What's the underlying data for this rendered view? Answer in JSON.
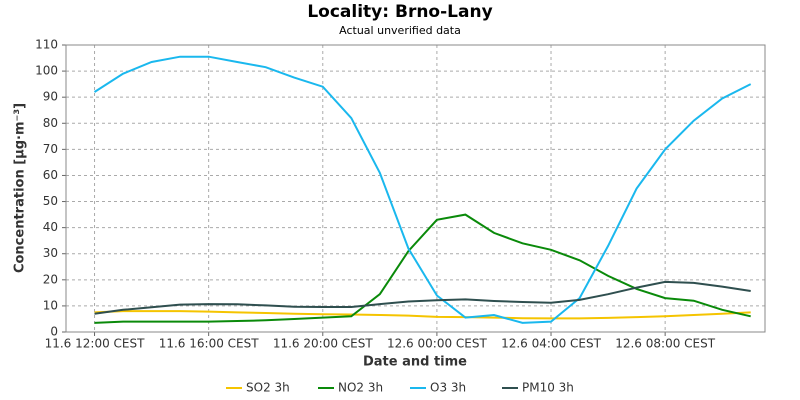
{
  "chart_data": {
    "type": "line",
    "title": "Locality: Brno-Lany",
    "subtitle": "Actual unverified data",
    "x_label": "Date and time",
    "y_label": "Concentration [µg·m⁻³]",
    "x": [
      "11.6 12:00 CEST",
      "11.6 13:00 CEST",
      "11.6 14:00 CEST",
      "11.6 15:00 CEST",
      "11.6 16:00 CEST",
      "11.6 17:00 CEST",
      "11.6 18:00 CEST",
      "11.6 19:00 CEST",
      "11.6 20:00 CEST",
      "11.6 21:00 CEST",
      "11.6 22:00 CEST",
      "11.6 23:00 CEST",
      "12.6 00:00 CEST",
      "12.6 01:00 CEST",
      "12.6 02:00 CEST",
      "12.6 03:00 CEST",
      "12.6 04:00 CEST",
      "12.6 05:00 CEST",
      "12.6 06:00 CEST",
      "12.6 07:00 CEST",
      "12.6 08:00 CEST",
      "12.6 09:00 CEST",
      "12.6 10:00 CEST",
      "12.6 11:00 CEST"
    ],
    "xlim": [
      "11.6 11:00 CEST",
      "12.6 11:30 CEST"
    ],
    "xticks": [
      "11.6 12:00 CEST",
      "11.6 16:00 CEST",
      "11.6 20:00 CEST",
      "12.6 00:00 CEST",
      "12.6 04:00 CEST",
      "12.6 08:00 CEST"
    ],
    "ylim": [
      0,
      110
    ],
    "yticks": [
      0,
      10,
      20,
      30,
      40,
      50,
      60,
      70,
      80,
      90,
      100,
      110
    ],
    "grid": true,
    "legend": "bottom",
    "series": [
      {
        "name": "SO2 3h",
        "color": "#f5c400",
        "values": [
          7.5,
          8,
          8,
          8,
          7.8,
          7.5,
          7.3,
          7,
          6.8,
          6.7,
          6.5,
          6.3,
          5.8,
          5.7,
          5.5,
          5.3,
          5.2,
          5.2,
          5.4,
          5.7,
          6,
          6.5,
          7,
          7.5
        ]
      },
      {
        "name": "NO2 3h",
        "color": "#0a8a0a",
        "values": [
          3.5,
          4,
          4,
          4,
          4,
          4.2,
          4.5,
          5,
          5.5,
          6,
          14.5,
          31,
          43,
          45,
          38,
          34,
          31.5,
          27.5,
          21.5,
          16.5,
          13,
          12,
          8.5,
          6
        ]
      },
      {
        "name": "O3 3h",
        "color": "#1ab8ee",
        "values": [
          92,
          99,
          103.5,
          105.5,
          105.5,
          103.5,
          101.5,
          97.5,
          94,
          82,
          61,
          32,
          14,
          5.5,
          6.5,
          3.5,
          4,
          13,
          33,
          55,
          70,
          81,
          89.5,
          95
        ]
      },
      {
        "name": "PM10 3h",
        "color": "#2f4f4f",
        "values": [
          7,
          8.5,
          9.5,
          10.5,
          10.7,
          10.6,
          10.2,
          9.7,
          9.6,
          9.6,
          10.7,
          11.7,
          12.2,
          12.5,
          11.9,
          11.5,
          11.2,
          12.3,
          14.5,
          17,
          19.2,
          18.8,
          17.4,
          15.7
        ]
      }
    ]
  }
}
